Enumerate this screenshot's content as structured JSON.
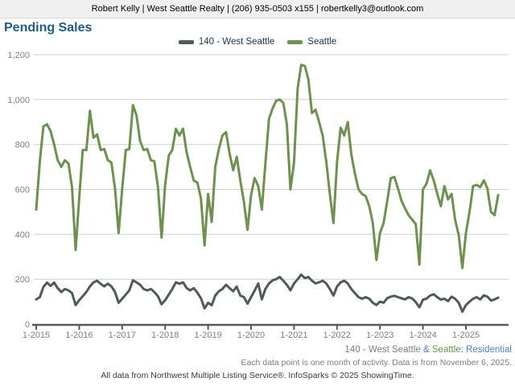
{
  "header": {
    "contact": "Robert Kelly | West Seattle Realty | (206) 935-0503 x155 | robertkelly3@outlook.com"
  },
  "title": "Pending Sales",
  "legend": [
    {
      "label": "140 - West Seattle",
      "color": "#4e5a5c"
    },
    {
      "label": "Seattle",
      "color": "#6e9150"
    }
  ],
  "colors": {
    "title_blue": "#1f5c8b",
    "legend_text": "#17365d",
    "axis_label_gray": "#808080",
    "gridline": "#cfcfcf",
    "axis_line": "#595959",
    "west_seattle_line": "#4e5a5c",
    "seattle_line": "#6e9150",
    "footer_blue": "#4f81bd",
    "footer_gray": "#7f7f7f"
  },
  "chart_data": {
    "type": "line",
    "title": "Pending Sales",
    "x_frequency": "monthly",
    "x_start": "2015-01",
    "x_end": "2025-10",
    "xtick_labels": [
      "1-2015",
      "1-2016",
      "1-2017",
      "1-2018",
      "1-2019",
      "1-2020",
      "1-2021",
      "1-2022",
      "1-2023",
      "1-2024",
      "1-2025"
    ],
    "ylim": [
      0,
      1200
    ],
    "yticks": [
      0,
      200,
      400,
      600,
      800,
      1000,
      1200
    ],
    "ytick_labels": [
      "0",
      "200",
      "400",
      "600",
      "800",
      "1,000",
      "1,200"
    ],
    "grid": "horizontal",
    "legend_position": "top-center",
    "series": [
      {
        "name": "140 - West Seattle",
        "color": "#4e5a5c",
        "values": [
          110,
          120,
          165,
          185,
          170,
          185,
          160,
          143,
          156,
          150,
          138,
          85,
          106,
          124,
          143,
          168,
          186,
          193,
          179,
          168,
          180,
          168,
          143,
          95,
          113,
          131,
          150,
          195,
          186,
          175,
          156,
          150,
          156,
          143,
          124,
          88,
          106,
          131,
          156,
          186,
          180,
          186,
          161,
          150,
          160,
          140,
          115,
          70,
          95,
          84,
          127,
          146,
          156,
          175,
          160,
          146,
          167,
          127,
          120,
          91,
          120,
          149,
          181,
          110,
          156,
          181,
          195,
          200,
          210,
          193,
          175,
          150,
          181,
          200,
          220,
          205,
          210,
          193,
          181,
          186,
          193,
          181,
          156,
          127,
          167,
          186,
          193,
          181,
          156,
          138,
          120,
          113,
          120,
          113,
          95,
          85,
          100,
          95,
          115,
          122,
          126,
          120,
          115,
          110,
          120,
          114,
          98,
          75,
          109,
          113,
          127,
          133,
          120,
          109,
          113,
          102,
          122,
          113,
          95,
          55,
          85,
          100,
          113,
          120,
          110,
          128,
          122,
          105,
          110,
          118
        ]
      },
      {
        "name": "Seattle",
        "color": "#6e9150",
        "values": [
          510,
          725,
          880,
          890,
          860,
          800,
          730,
          700,
          730,
          715,
          610,
          330,
          560,
          775,
          775,
          950,
          830,
          845,
          775,
          780,
          730,
          720,
          605,
          405,
          600,
          775,
          780,
          975,
          930,
          815,
          775,
          780,
          730,
          725,
          610,
          385,
          620,
          750,
          775,
          870,
          840,
          870,
          765,
          700,
          640,
          630,
          560,
          350,
          580,
          455,
          700,
          780,
          840,
          855,
          760,
          685,
          745,
          640,
          545,
          420,
          575,
          650,
          615,
          510,
          715,
          915,
          960,
          995,
          1000,
          985,
          890,
          600,
          720,
          1050,
          1155,
          1150,
          1090,
          940,
          955,
          900,
          840,
          725,
          580,
          450,
          720,
          875,
          840,
          900,
          755,
          670,
          600,
          580,
          570,
          525,
          450,
          285,
          405,
          450,
          545,
          650,
          655,
          605,
          550,
          515,
          485,
          465,
          445,
          265,
          600,
          625,
          685,
          640,
          580,
          525,
          615,
          555,
          580,
          465,
          395,
          250,
          405,
          500,
          615,
          620,
          610,
          640,
          605,
          500,
          485,
          575
        ]
      }
    ]
  },
  "footer": {
    "series_label_gray": "140 - West Seattle ",
    "series_label_amp": "& ",
    "series_label_green": "Seattle",
    "series_label_rest": ": Residential",
    "note": "Each data point is one month of activity. Data is from November 6, 2025.",
    "attribution": "All data from Northwest Multiple Listing Service®. InfoSparks © 2025 ShowingTime."
  }
}
